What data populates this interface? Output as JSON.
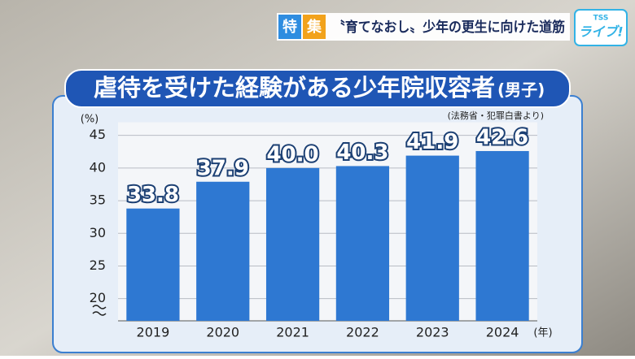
{
  "banner": {
    "tag_first": "特",
    "tag_second": "集",
    "headline": "〝育てなおし〟少年の更生に向けた道筋",
    "logo_small": "TSS",
    "logo": "ライブ!"
  },
  "chart_data": {
    "type": "bar",
    "title": "虐待を受けた経験がある少年院収容者",
    "subtitle": "(男子)",
    "source": "(法務省・犯罪白書より)",
    "y_unit": "(%)",
    "x_unit": "(年)",
    "categories": [
      "2019",
      "2020",
      "2021",
      "2022",
      "2023",
      "2024"
    ],
    "values": [
      33.8,
      37.9,
      40.0,
      40.3,
      41.9,
      42.6
    ],
    "value_labels": [
      "33.8",
      "37.9",
      "40.0",
      "40.3",
      "41.9",
      "42.6"
    ],
    "color": "#2e78d2",
    "ylim": [
      16.6,
      47
    ],
    "yticks": [
      20,
      25,
      30,
      35,
      40,
      45
    ],
    "grid": true
  }
}
